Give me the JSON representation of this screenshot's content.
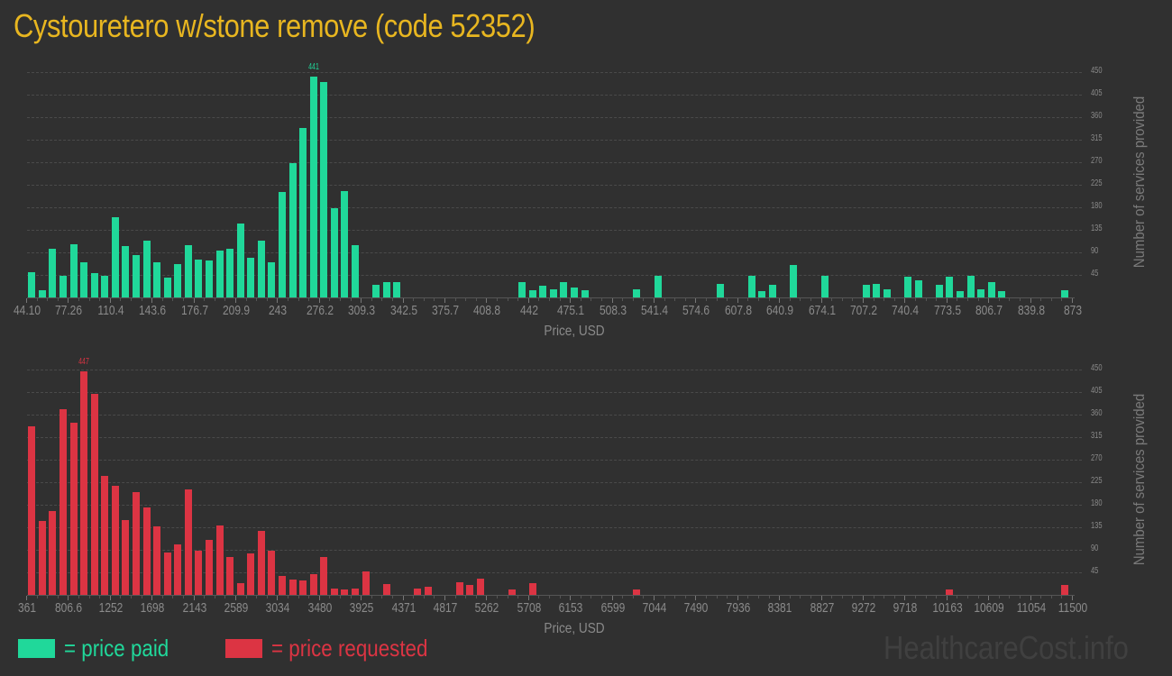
{
  "title": "Cystouretero w/stone remove (code 52352)",
  "colors": {
    "background": "#303030",
    "title": "#e8b620",
    "paid": "#20d89a",
    "requested": "#dc3443",
    "axis_text": "#8a8a8a",
    "watermark": "#404040"
  },
  "legend": {
    "paid_label": "= price paid",
    "requested_label": "= price requested"
  },
  "watermark": "HealthcareCost.info",
  "chart_data": [
    {
      "type": "bar",
      "title": "price paid",
      "xlabel": "Price, USD",
      "ylabel": "Number of services provided",
      "ylim": [
        0,
        450
      ],
      "yticks": [
        45,
        90,
        135,
        180,
        225,
        270,
        315,
        360,
        405,
        450
      ],
      "grid": true,
      "peak_label": "441",
      "xticks": [
        "44.10",
        "77.26",
        "110.4",
        "143.6",
        "176.7",
        "209.9",
        "243",
        "276.2",
        "309.3",
        "342.5",
        "375.7",
        "408.8",
        "442",
        "475.1",
        "508.3",
        "541.4",
        "574.6",
        "607.8",
        "640.9",
        "674.1",
        "707.2",
        "740.4",
        "773.5",
        "806.7",
        "839.8",
        "873"
      ],
      "xrange": [
        44.1,
        873
      ],
      "bins": 100,
      "color": "#20d89a",
      "values": [
        50,
        14,
        98,
        44,
        107,
        71,
        48,
        43,
        160,
        102,
        84,
        113,
        71,
        39,
        66,
        104,
        75,
        73,
        93,
        98,
        148,
        80,
        114,
        71,
        210,
        269,
        339,
        441,
        431,
        179,
        213,
        105,
        0,
        25,
        30,
        30,
        0,
        0,
        0,
        0,
        0,
        0,
        0,
        0,
        0,
        0,
        0,
        30,
        14,
        23,
        17,
        30,
        19,
        14,
        0,
        0,
        0,
        0,
        17,
        0,
        43,
        0,
        0,
        0,
        0,
        0,
        27,
        0,
        0,
        43,
        12,
        25,
        0,
        64,
        0,
        0,
        44,
        0,
        0,
        0,
        25,
        27,
        16,
        0,
        41,
        34,
        0,
        25,
        41,
        12,
        44,
        17,
        30,
        12,
        0,
        0,
        0,
        0,
        0,
        14
      ]
    },
    {
      "type": "bar",
      "title": "price requested",
      "xlabel": "Price, USD",
      "ylabel": "Number of services provided",
      "ylim": [
        0,
        450
      ],
      "yticks": [
        45,
        90,
        135,
        180,
        225,
        270,
        315,
        360,
        405,
        450
      ],
      "grid": true,
      "peak_label": "447",
      "xticks": [
        "361",
        "806.6",
        "1252",
        "1698",
        "2143",
        "2589",
        "3034",
        "3480",
        "3925",
        "4371",
        "4817",
        "5262",
        "5708",
        "6153",
        "6599",
        "7044",
        "7490",
        "7936",
        "8381",
        "8827",
        "9272",
        "9718",
        "10163",
        "10609",
        "11054",
        "11500"
      ],
      "xrange": [
        361,
        11500
      ],
      "bins": 100,
      "color": "#dc3443",
      "values": [
        337,
        148,
        168,
        370,
        344,
        447,
        402,
        238,
        217,
        150,
        206,
        175,
        137,
        85,
        100,
        210,
        89,
        109,
        139,
        76,
        24,
        83,
        128,
        89,
        37,
        31,
        29,
        42,
        76,
        13,
        11,
        13,
        46,
        0,
        22,
        0,
        0,
        13,
        17,
        0,
        0,
        26,
        19,
        33,
        0,
        0,
        11,
        0,
        24,
        0,
        0,
        0,
        0,
        0,
        0,
        0,
        0,
        0,
        11,
        0,
        0,
        0,
        0,
        0,
        0,
        0,
        0,
        0,
        0,
        0,
        0,
        0,
        0,
        0,
        0,
        0,
        0,
        0,
        0,
        0,
        0,
        0,
        0,
        0,
        0,
        0,
        0,
        0,
        11,
        0,
        0,
        0,
        0,
        0,
        0,
        0,
        0,
        0,
        0,
        20
      ]
    }
  ]
}
